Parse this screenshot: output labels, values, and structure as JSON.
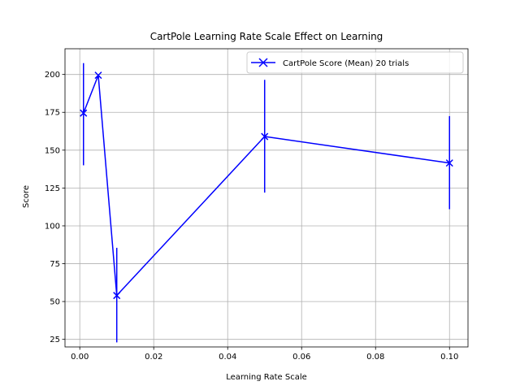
{
  "chart_data": {
    "type": "line",
    "title": "CartPole Learning Rate Scale Effect on Learning",
    "xlabel": "Learning Rate Scale",
    "ylabel": "Score",
    "xlim": [
      -0.004,
      0.105
    ],
    "ylim": [
      20,
      217
    ],
    "x_ticks": [
      0.0,
      0.02,
      0.04,
      0.06,
      0.08,
      0.1
    ],
    "x_tick_labels": [
      "0.00",
      "0.02",
      "0.04",
      "0.06",
      "0.08",
      "0.10"
    ],
    "y_ticks": [
      25,
      50,
      75,
      100,
      125,
      150,
      175,
      200
    ],
    "y_tick_labels": [
      "25",
      "50",
      "75",
      "100",
      "125",
      "150",
      "175",
      "200"
    ],
    "grid": true,
    "legend_position": "top-right",
    "series": [
      {
        "name": "CartPole Score (Mean) 20 trials",
        "color": "#0000ff",
        "marker": "x",
        "x": [
          0.001,
          0.005,
          0.01,
          0.05,
          0.1
        ],
        "y": [
          174.5,
          199.5,
          54.0,
          159.0,
          141.5
        ],
        "error_low": [
          140,
          199.5,
          23,
          122,
          111
        ],
        "error_high": [
          207.5,
          199.5,
          85.5,
          196.5,
          172.5
        ]
      }
    ]
  }
}
